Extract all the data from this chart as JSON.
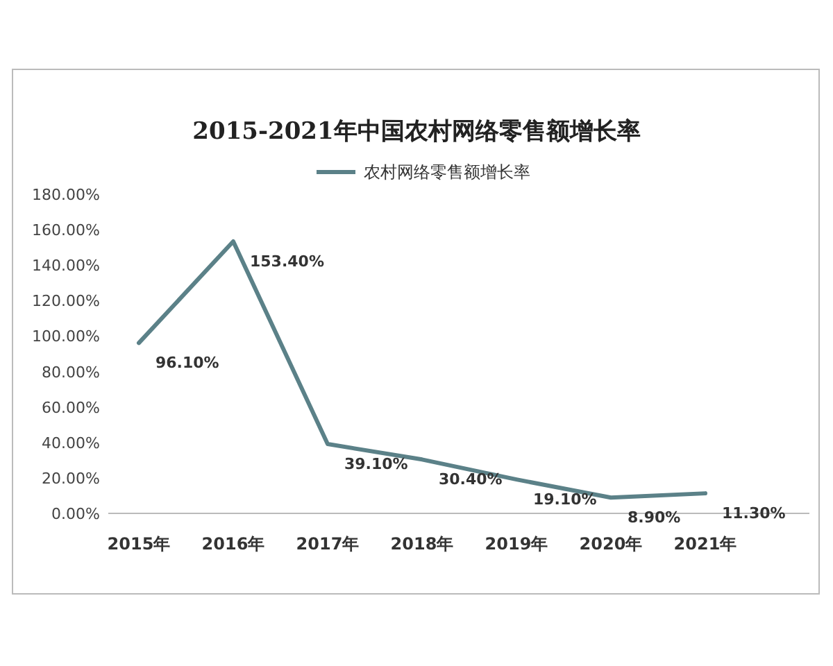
{
  "chart_data": {
    "type": "line",
    "title": "2015-2021年中国农村网络零售额增长率",
    "categories": [
      "2015年",
      "2016年",
      "2017年",
      "2018年",
      "2019年",
      "2020年",
      "2021年"
    ],
    "series": [
      {
        "name": "农村网络零售额增长率",
        "color": "#5b8188",
        "values": [
          96.1,
          153.4,
          39.1,
          30.4,
          19.1,
          8.9,
          11.3
        ],
        "value_labels": [
          "96.10%",
          "153.40%",
          "39.10%",
          "30.40%",
          "19.10%",
          "8.90%",
          "11.30%"
        ]
      }
    ],
    "ylim": [
      0,
      180
    ],
    "yticks": [
      {
        "value": 0,
        "label": "0.00%"
      },
      {
        "value": 20,
        "label": "20.00%"
      },
      {
        "value": 40,
        "label": "40.00%"
      },
      {
        "value": 60,
        "label": "60.00%"
      },
      {
        "value": 80,
        "label": "80.00%"
      },
      {
        "value": 100,
        "label": "100.00%"
      },
      {
        "value": 120,
        "label": "120.00%"
      },
      {
        "value": 140,
        "label": "140.00%"
      },
      {
        "value": 160,
        "label": "160.00%"
      },
      {
        "value": 180,
        "label": "180.00%"
      }
    ],
    "legend": "top",
    "grid": false,
    "marker": "none",
    "line_style": "solid"
  }
}
